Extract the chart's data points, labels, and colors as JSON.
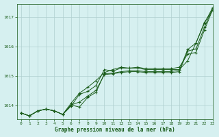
{
  "title": "Graphe pression niveau de la mer (hPa)",
  "background_color": "#d6f0f0",
  "grid_color": "#b0d0d0",
  "line_color": "#1a5c1a",
  "xlim": [
    -0.5,
    23
  ],
  "ylim": [
    1013.55,
    1017.45
  ],
  "yticks": [
    1014,
    1015,
    1016,
    1017
  ],
  "xticks": [
    0,
    1,
    2,
    3,
    4,
    5,
    6,
    7,
    8,
    9,
    10,
    11,
    12,
    13,
    14,
    15,
    16,
    17,
    18,
    19,
    20,
    21,
    22,
    23
  ],
  "series": [
    [
      1013.75,
      1013.65,
      1013.82,
      1013.88,
      1013.82,
      1013.7,
      1013.98,
      1014.38,
      1014.48,
      1014.68,
      1015.22,
      1015.17,
      1015.27,
      1015.27,
      1015.27,
      1015.22,
      1015.22,
      1015.22,
      1015.22,
      1015.22,
      1015.52,
      1016.12,
      1016.82,
      1017.22
    ],
    [
      1013.75,
      1013.65,
      1013.82,
      1013.88,
      1013.82,
      1013.7,
      1014.02,
      1014.12,
      1014.32,
      1014.52,
      1015.05,
      1015.08,
      1015.12,
      1015.15,
      1015.15,
      1015.12,
      1015.12,
      1015.12,
      1015.12,
      1015.15,
      1015.85,
      1015.92,
      1016.65,
      1017.3
    ],
    [
      1013.75,
      1013.65,
      1013.82,
      1013.88,
      1013.82,
      1013.7,
      1014.08,
      1014.42,
      1014.62,
      1014.85,
      1015.12,
      1015.22,
      1015.3,
      1015.27,
      1015.3,
      1015.25,
      1015.25,
      1015.25,
      1015.25,
      1015.3,
      1015.75,
      1015.8,
      1016.55,
      1017.25
    ],
    [
      1013.75,
      1013.65,
      1013.82,
      1013.88,
      1013.82,
      1013.7,
      1014.02,
      1013.95,
      1014.28,
      1014.45,
      1015.08,
      1015.1,
      1015.15,
      1015.18,
      1015.18,
      1015.15,
      1015.15,
      1015.15,
      1015.15,
      1015.2,
      1015.9,
      1016.12,
      1016.78,
      1017.32
    ]
  ]
}
